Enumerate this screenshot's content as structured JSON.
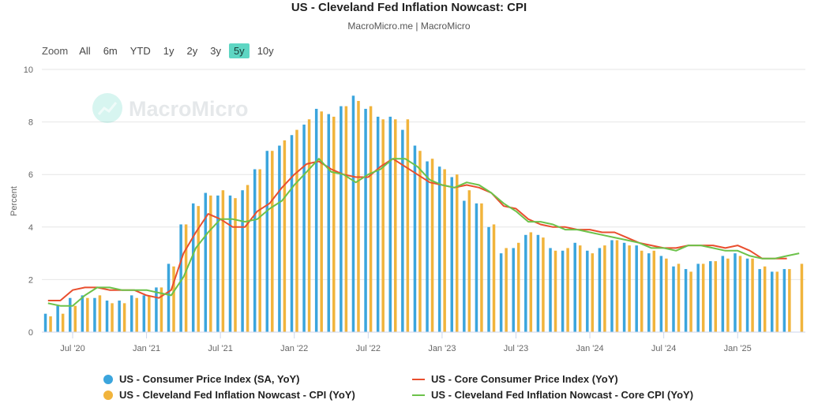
{
  "title": "US - Cleveland Fed Inflation Nowcast: CPI",
  "subtitle": "MacroMicro.me | MacroMicro",
  "watermark": "MacroMicro",
  "range_selector": {
    "zoom_label": "Zoom",
    "buttons": [
      "All",
      "6m",
      "YTD",
      "1y",
      "2y",
      "3y",
      "5y",
      "10y"
    ],
    "active": "5y"
  },
  "colors": {
    "cpi": "#3ba5dd",
    "nowcast_cpi": "#f1b43c",
    "core_cpi": "#e94e2e",
    "nowcast_core": "#6cc24a",
    "grid": "#e6e6e6",
    "axis": "#ccd6eb"
  },
  "chart_data": {
    "type": "bar",
    "ylabel": "Percent",
    "ylim": [
      0,
      10
    ],
    "yticks": [
      0,
      2,
      4,
      6,
      8,
      10
    ],
    "grid": true,
    "legend_position": "bottom",
    "categories": [
      "May 20",
      "Jun 20",
      "Jul 20",
      "Aug 20",
      "Sep 20",
      "Oct 20",
      "Nov 20",
      "Dec 20",
      "Jan 21",
      "Feb 21",
      "Mar 21",
      "Apr 21",
      "May 21",
      "Jun 21",
      "Jul 21",
      "Aug 21",
      "Sep 21",
      "Oct 21",
      "Nov 21",
      "Dec 21",
      "Jan 22",
      "Feb 22",
      "Mar 22",
      "Apr 22",
      "May 22",
      "Jun 22",
      "Jul 22",
      "Aug 22",
      "Sep 22",
      "Oct 22",
      "Nov 22",
      "Dec 22",
      "Jan 23",
      "Feb 23",
      "Mar 23",
      "Apr 23",
      "May 23",
      "Jun 23",
      "Jul 23",
      "Aug 23",
      "Sep 23",
      "Oct 23",
      "Nov 23",
      "Dec 23",
      "Jan 24",
      "Feb 24",
      "Mar 24",
      "Apr 24",
      "May 24",
      "Jun 24",
      "Jul 24",
      "Aug 24",
      "Sep 24",
      "Oct 24",
      "Nov 24",
      "Dec 24",
      "Jan 25",
      "Feb 25",
      "Mar 25",
      "Apr 25",
      "May 25",
      "Jun 25"
    ],
    "xticks": [
      {
        "label": "Jul '20",
        "index": 2
      },
      {
        "label": "Jan '21",
        "index": 8
      },
      {
        "label": "Jul '21",
        "index": 14
      },
      {
        "label": "Jan '22",
        "index": 20
      },
      {
        "label": "Jul '22",
        "index": 26
      },
      {
        "label": "Jan '23",
        "index": 32
      },
      {
        "label": "Jul '23",
        "index": 38
      },
      {
        "label": "Jan '24",
        "index": 44
      },
      {
        "label": "Jul '24",
        "index": 50
      },
      {
        "label": "Jan '25",
        "index": 56
      }
    ],
    "series": [
      {
        "name": "US - Consumer Price Index (SA, YoY)",
        "type": "bar",
        "color_key": "cpi",
        "values": [
          0.7,
          1.0,
          1.3,
          1.4,
          1.3,
          1.2,
          1.2,
          1.4,
          1.4,
          1.7,
          2.6,
          4.1,
          4.9,
          5.3,
          5.2,
          5.2,
          5.4,
          6.2,
          6.9,
          7.1,
          7.5,
          7.9,
          8.5,
          8.3,
          8.6,
          9.0,
          8.5,
          8.2,
          8.2,
          7.7,
          7.1,
          6.5,
          6.3,
          5.9,
          5.0,
          4.9,
          4.0,
          3.0,
          3.2,
          3.7,
          3.7,
          3.2,
          3.1,
          3.4,
          3.1,
          3.2,
          3.5,
          3.4,
          3.3,
          3.0,
          2.9,
          2.5,
          2.4,
          2.6,
          2.7,
          2.9,
          3.0,
          2.8,
          2.4,
          2.3,
          2.4,
          null
        ]
      },
      {
        "name": "US - Cleveland Fed Inflation Nowcast - CPI (YoY)",
        "type": "bar",
        "color_key": "nowcast_cpi",
        "values": [
          0.6,
          0.7,
          1.0,
          1.3,
          1.4,
          1.1,
          1.1,
          1.3,
          1.4,
          1.7,
          2.5,
          4.1,
          4.8,
          5.2,
          5.4,
          5.1,
          5.6,
          6.2,
          6.9,
          7.3,
          7.7,
          8.1,
          8.4,
          8.2,
          8.6,
          8.8,
          8.6,
          8.1,
          8.1,
          8.1,
          6.9,
          6.6,
          6.2,
          6.0,
          5.4,
          4.9,
          4.1,
          3.2,
          3.4,
          3.8,
          3.6,
          3.1,
          3.2,
          3.3,
          3.0,
          3.3,
          3.5,
          3.3,
          3.1,
          3.1,
          2.8,
          2.6,
          2.3,
          2.6,
          2.7,
          2.8,
          2.9,
          2.8,
          2.5,
          2.3,
          2.4,
          2.6
        ]
      },
      {
        "name": "US - Core Consumer Price Index (YoY)",
        "type": "line",
        "color_key": "core_cpi",
        "values": [
          1.2,
          1.2,
          1.6,
          1.7,
          1.7,
          1.6,
          1.6,
          1.6,
          1.4,
          1.3,
          1.6,
          3.0,
          3.8,
          4.5,
          4.3,
          4.0,
          4.0,
          4.6,
          4.9,
          5.5,
          6.0,
          6.4,
          6.5,
          6.2,
          6.0,
          5.9,
          5.9,
          6.3,
          6.6,
          6.3,
          6.0,
          5.7,
          5.6,
          5.5,
          5.6,
          5.5,
          5.3,
          4.8,
          4.7,
          4.3,
          4.1,
          4.0,
          4.0,
          3.9,
          3.9,
          3.8,
          3.8,
          3.6,
          3.4,
          3.3,
          3.2,
          3.2,
          3.3,
          3.3,
          3.3,
          3.2,
          3.3,
          3.1,
          2.8,
          2.8,
          2.8,
          null
        ]
      },
      {
        "name": "US - Cleveland Fed Inflation Nowcast - Core CPI (YoY)",
        "type": "line",
        "color_key": "nowcast_core",
        "values": [
          1.1,
          1.0,
          1.0,
          1.4,
          1.7,
          1.7,
          1.6,
          1.6,
          1.6,
          1.5,
          1.4,
          2.1,
          3.2,
          3.8,
          4.3,
          4.3,
          4.2,
          4.3,
          4.7,
          5.0,
          5.6,
          6.1,
          6.6,
          6.1,
          6.0,
          5.7,
          6.0,
          6.2,
          6.6,
          6.6,
          6.3,
          5.8,
          5.6,
          5.5,
          5.7,
          5.6,
          5.3,
          4.9,
          4.6,
          4.2,
          4.2,
          4.1,
          3.9,
          3.9,
          3.8,
          3.7,
          3.6,
          3.5,
          3.4,
          3.2,
          3.2,
          3.1,
          3.3,
          3.3,
          3.2,
          3.1,
          3.1,
          2.9,
          2.8,
          2.8,
          2.9,
          3.0
        ]
      }
    ]
  }
}
